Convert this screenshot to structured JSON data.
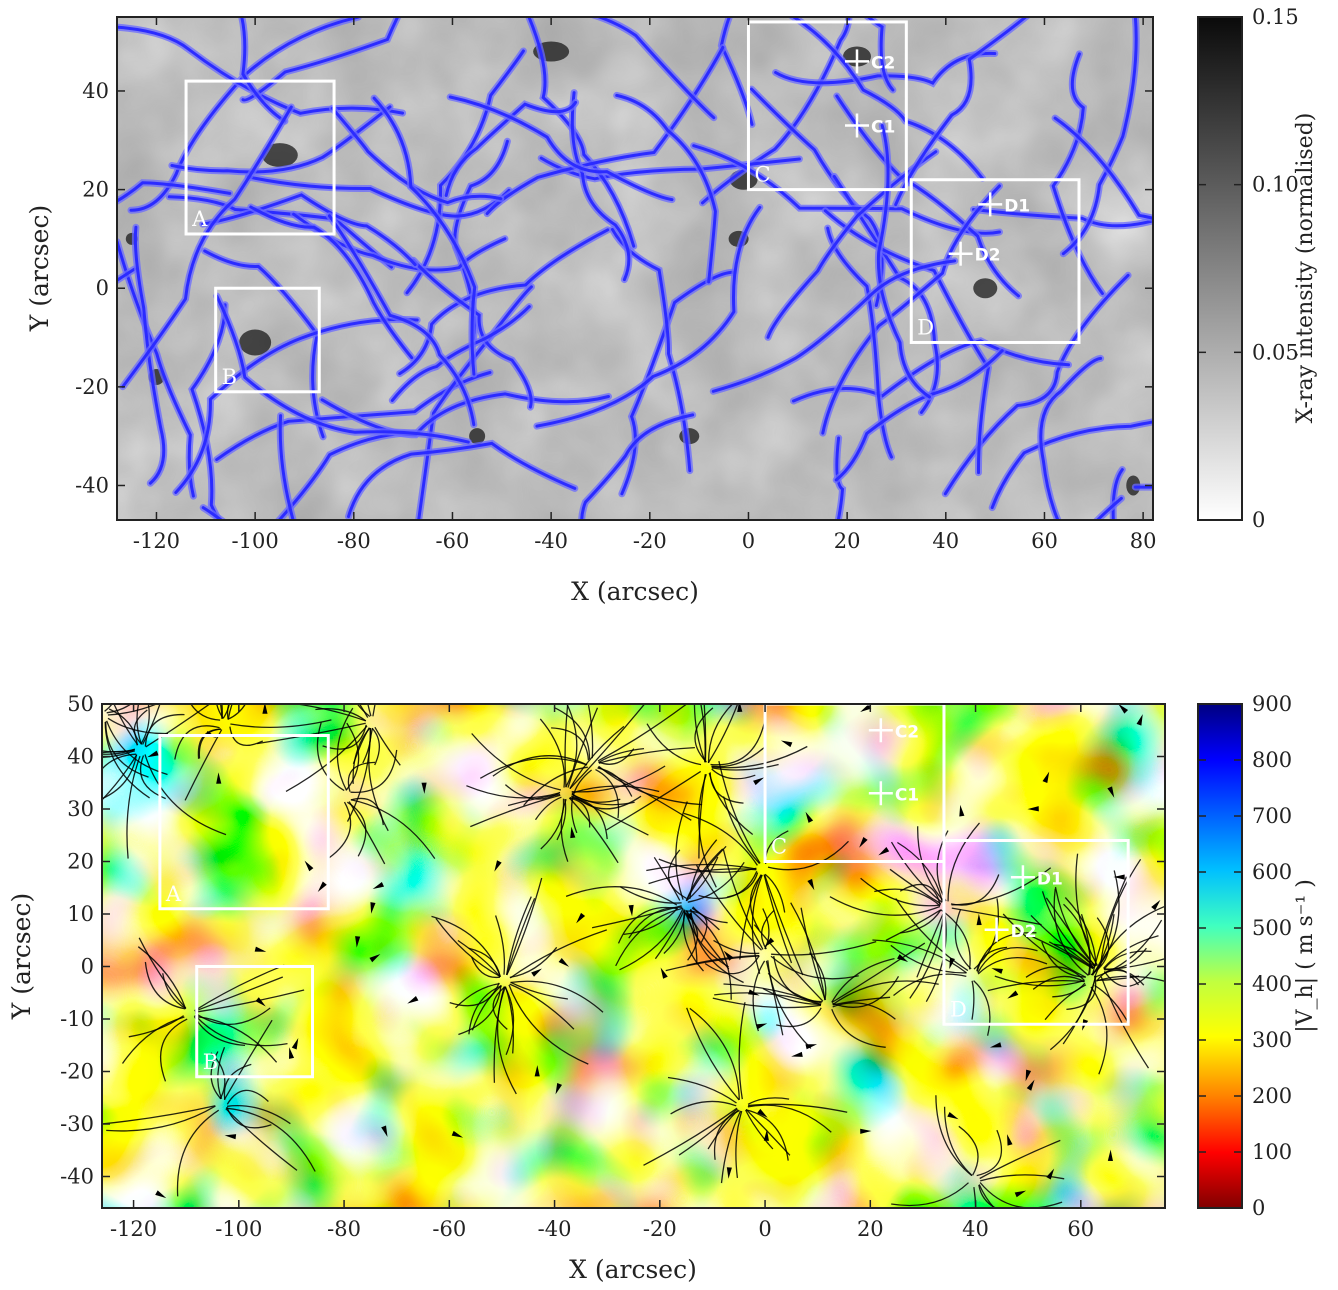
{
  "chart_data": [
    {
      "type": "heatmap",
      "panel": "top",
      "xlabel": "X (arcsec)",
      "ylabel": "Y (arcsec)",
      "xlim": [
        -128,
        82
      ],
      "ylim": [
        -47,
        55
      ],
      "xticks": [
        -120,
        -100,
        -80,
        -60,
        -40,
        -20,
        0,
        20,
        40,
        60,
        80
      ],
      "yticks": [
        -40,
        -20,
        0,
        20,
        40
      ],
      "colorbar": {
        "label": "X-ray intensity (normalised)",
        "range": [
          0,
          0.15
        ],
        "ticks": [
          0,
          0.05,
          0.1,
          0.15
        ],
        "tick_labels": [
          "0",
          "0.05",
          "0.10",
          "0.15"
        ],
        "colormap": "gray-reversed"
      },
      "overlay_color": "#2b2bff",
      "boxes": [
        {
          "label": "A",
          "x0": -114,
          "x1": -84,
          "y0": 11,
          "y1": 42
        },
        {
          "label": "B",
          "x0": -108,
          "x1": -87,
          "y0": -21,
          "y1": 0
        },
        {
          "label": "C",
          "x0": 0,
          "x1": 32,
          "y0": 20,
          "y1": 54
        },
        {
          "label": "D",
          "x0": 33,
          "x1": 67,
          "y0": -11,
          "y1": 22
        }
      ],
      "points": [
        {
          "label": "C2",
          "x": 22,
          "y": 46
        },
        {
          "label": "C1",
          "x": 22,
          "y": 33
        },
        {
          "label": "D1",
          "x": 49,
          "y": 17
        },
        {
          "label": "D2",
          "x": 43,
          "y": 7
        }
      ]
    },
    {
      "type": "heatmap",
      "panel": "bottom",
      "xlabel": "X (arcsec)",
      "ylabel": "Y (arcsec)",
      "xlim": [
        -126,
        76
      ],
      "ylim": [
        -46,
        50
      ],
      "xticks": [
        -120,
        -100,
        -80,
        -60,
        -40,
        -20,
        0,
        20,
        40,
        60
      ],
      "yticks": [
        -40,
        -30,
        -20,
        -10,
        0,
        10,
        20,
        30,
        40,
        50
      ],
      "colorbar": {
        "label": "|V_h| ( m s⁻¹ )",
        "range": [
          0,
          900
        ],
        "ticks": [
          0,
          100,
          200,
          300,
          400,
          500,
          600,
          700,
          800,
          900
        ],
        "colormap": "jet-reversed"
      },
      "overlay_color": "#000000",
      "boxes": [
        {
          "label": "A",
          "x0": -115,
          "x1": -83,
          "y0": 11,
          "y1": 44
        },
        {
          "label": "B",
          "x0": -108,
          "x1": -86,
          "y0": -21,
          "y1": 0
        },
        {
          "label": "C",
          "x0": 0,
          "x1": 34,
          "y0": 20,
          "y1": 50
        },
        {
          "label": "D",
          "x0": 34,
          "x1": 69,
          "y0": -11,
          "y1": 24
        }
      ],
      "points": [
        {
          "label": "C2",
          "x": 22,
          "y": 45
        },
        {
          "label": "C1",
          "x": 22,
          "y": 33
        },
        {
          "label": "D1",
          "x": 49,
          "y": 17
        },
        {
          "label": "D2",
          "x": 44,
          "y": 7
        }
      ]
    }
  ]
}
